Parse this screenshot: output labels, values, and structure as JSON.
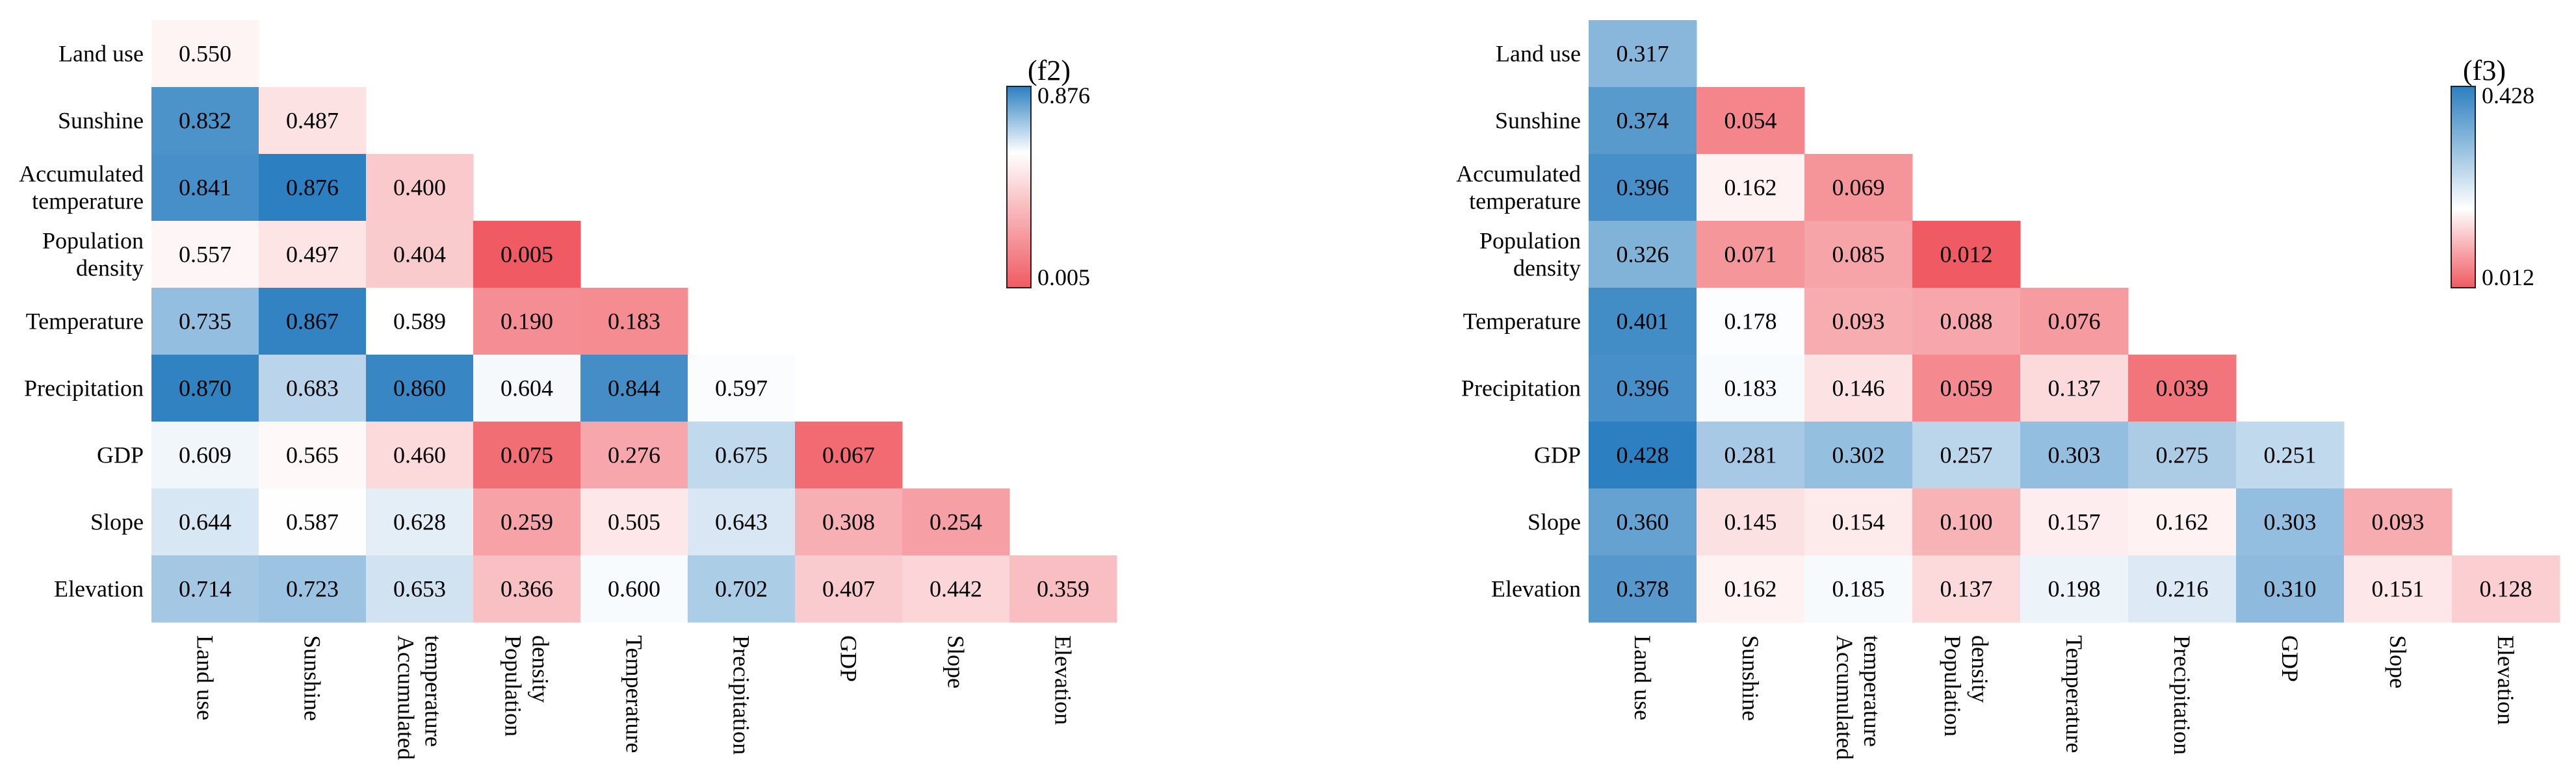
{
  "chart_data": [
    {
      "type": "heatmap",
      "panel_label": "(f2)",
      "row_labels": [
        [
          "Land use"
        ],
        [
          "Sunshine"
        ],
        [
          "Accumulated",
          "temperature"
        ],
        [
          "Population",
          "density"
        ],
        [
          "Temperature"
        ],
        [
          "Precipitation"
        ],
        [
          "GDP"
        ],
        [
          "Slope"
        ],
        [
          "Elevation"
        ]
      ],
      "col_labels": [
        [
          "Land use"
        ],
        [
          "Sunshine"
        ],
        [
          "Accumulated",
          "temperature"
        ],
        [
          "Population",
          "density"
        ],
        [
          "Temperature"
        ],
        [
          "Precipitation"
        ],
        [
          "GDP"
        ],
        [
          "Slope"
        ],
        [
          "Elevation"
        ]
      ],
      "values": [
        [
          "0.550"
        ],
        [
          "0.832",
          "0.487"
        ],
        [
          "0.841",
          "0.876",
          "0.400"
        ],
        [
          "0.557",
          "0.497",
          "0.404",
          "0.005"
        ],
        [
          "0.735",
          "0.867",
          "0.589",
          "0.190",
          "0.183"
        ],
        [
          "0.870",
          "0.683",
          "0.860",
          "0.604",
          "0.844",
          "0.597"
        ],
        [
          "0.609",
          "0.565",
          "0.460",
          "0.075",
          "0.276",
          "0.675",
          "0.067"
        ],
        [
          "0.644",
          "0.587",
          "0.628",
          "0.259",
          "0.505",
          "0.643",
          "0.308",
          "0.254"
        ],
        [
          "0.714",
          "0.723",
          "0.653",
          "0.366",
          "0.600",
          "0.702",
          "0.407",
          "0.442",
          "0.359"
        ]
      ],
      "colorbar": {
        "max": "0.876",
        "min": "0.005",
        "mid_value": 0.59
      },
      "colors": {
        "high": "#2c7fc0",
        "mid": "#ffffff",
        "low": "#f05a62"
      }
    },
    {
      "type": "heatmap",
      "panel_label": "(f3)",
      "row_labels": [
        [
          "Land use"
        ],
        [
          "Sunshine"
        ],
        [
          "Accumulated",
          "temperature"
        ],
        [
          "Population",
          "density"
        ],
        [
          "Temperature"
        ],
        [
          "Precipitation"
        ],
        [
          "GDP"
        ],
        [
          "Slope"
        ],
        [
          "Elevation"
        ]
      ],
      "col_labels": [
        [
          "Land use"
        ],
        [
          "Sunshine"
        ],
        [
          "Accumulated",
          "temperature"
        ],
        [
          "Population",
          "density"
        ],
        [
          "Temperature"
        ],
        [
          "Precipitation"
        ],
        [
          "GDP"
        ],
        [
          "Slope"
        ],
        [
          "Elevation"
        ]
      ],
      "values": [
        [
          "0.317"
        ],
        [
          "0.374",
          "0.054"
        ],
        [
          "0.396",
          "0.162",
          "0.069"
        ],
        [
          "0.326",
          "0.071",
          "0.085",
          "0.012"
        ],
        [
          "0.401",
          "0.178",
          "0.093",
          "0.088",
          "0.076"
        ],
        [
          "0.396",
          "0.183",
          "0.146",
          "0.059",
          "0.137",
          "0.039"
        ],
        [
          "0.428",
          "0.281",
          "0.302",
          "0.257",
          "0.303",
          "0.275",
          "0.251"
        ],
        [
          "0.360",
          "0.145",
          "0.154",
          "0.100",
          "0.157",
          "0.162",
          "0.303",
          "0.093"
        ],
        [
          "0.378",
          "0.162",
          "0.185",
          "0.137",
          "0.198",
          "0.216",
          "0.310",
          "0.151",
          "0.128"
        ]
      ],
      "colorbar": {
        "max": "0.428",
        "min": "0.012",
        "mid_value": 0.175
      },
      "colors": {
        "high": "#2c7fc0",
        "mid": "#ffffff",
        "low": "#f05a62"
      }
    }
  ]
}
